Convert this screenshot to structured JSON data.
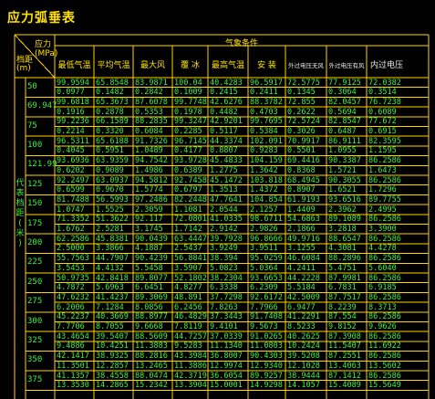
{
  "title": "应力弧垂表",
  "header": {
    "stress": "应力",
    "unit": "(MPa)",
    "span": "档距",
    "span_unit": "(m)",
    "conditions": "气象条件",
    "columns": [
      "最低气温",
      "平均气温",
      "最大风",
      "覆 冰",
      "最高气温",
      "安 装",
      "外过电压无风",
      "外过电压有风",
      "内过电压"
    ],
    "side_label": "代表档距(米)"
  },
  "rows": [
    {
      "span": "50",
      "stress": [
        "99.9594",
        "65.8548",
        "83.9871",
        "100.04",
        "40.4283",
        "96.5917",
        "72.5775",
        "77.9125",
        "72.0382"
      ],
      "sag": [
        "0.0977",
        "0.1482",
        "0.2842",
        "0.1009",
        "0.2415",
        "0.2411",
        "0.1345",
        "0.3064",
        "0.3514"
      ]
    },
    {
      "span": "69.947",
      "stress": [
        "99.6818",
        "65.3673",
        "87.6078",
        "99.7748",
        "42.6276",
        "88.3782",
        "72.855",
        "82.0457",
        "76.7238"
      ],
      "sag": [
        "0.1916",
        "0.2878",
        "0.5353",
        "0.1978",
        "0.4482",
        "0.4703",
        "0.2622",
        "0.5694",
        "0.6089"
      ]
    },
    {
      "span": "75",
      "stress": [
        "99.2236",
        "66.1589",
        "88.2835",
        "99.3247",
        "42.9201",
        "99.7695",
        "72.5724",
        "82.8547",
        "77.672"
      ],
      "sag": [
        "0.2214",
        "0.3320",
        "0.6084",
        "0.2285",
        "0.5117",
        "0.5384",
        "0.3026",
        "0.6487",
        "0.6915"
      ]
    },
    {
      "span": "100",
      "stress": [
        "96.5311",
        "65.6188",
        "91.7326",
        "96.7145",
        "44.3374",
        "102.091",
        "70.9917",
        "86.9111",
        "82.3595"
      ],
      "sag": [
        "0.4045",
        "0.5951",
        "1.0489",
        "0.4177",
        "0.8807",
        "0.9283",
        "0.5501",
        "1.0955",
        "1.1595"
      ]
    },
    {
      "span": "121.99",
      "stress": [
        "93.6936",
        "63.9359",
        "94.7542",
        "93.9728",
        "45.4833",
        "104.159",
        "69.4416",
        "90.3387",
        "86.2586"
      ],
      "sag": [
        "0.6202",
        "0.9089",
        "1.4986",
        "0.6389",
        "1.2775",
        "1.3642",
        "0.8368",
        "1.5721",
        "1.6473"
      ]
    },
    {
      "span": "125",
      "stress": [
        "92.2497",
        "63.0937",
        "94.5812",
        "92.7458",
        "45.1472",
        "103.818",
        "68.4945",
        "90.3055",
        "86.2586"
      ],
      "sag": [
        "0.6599",
        "0.9670",
        "1.5774",
        "0.6797",
        "1.3513",
        "1.4372",
        "0.8907",
        "1.6521",
        "1.7296"
      ]
    },
    {
      "span": "150",
      "stress": [
        "81.7488",
        "56.5993",
        "97.2486",
        "82.2448",
        "47.7641",
        "104.854",
        "61.9193",
        "93.6516",
        "89.7755"
      ],
      "sag": [
        "1.0747",
        "1.5525",
        "2.3059",
        "1.1081",
        "2.0544",
        "2.1257",
        "1.4409",
        "2.3962",
        "2.4995"
      ]
    },
    {
      "span": "175",
      "stress": [
        "71.3352",
        "51.3622",
        "92.117",
        "72.0801",
        "41.0335",
        "98.6711",
        "54.6863",
        "89.1089",
        "86.2586"
      ],
      "sag": [
        "1.6762",
        "2.5281",
        "3.1745",
        "1.7142",
        "2.9142",
        "2.9826",
        "2.1866",
        "3.2818",
        "3.3900"
      ]
    },
    {
      "span": "200",
      "stress": [
        "62.2586",
        "45.8381",
        "90.0439",
        "63.4447",
        "39.7928",
        "96.8666",
        "49.9716",
        "88.6547",
        "86.2586"
      ],
      "sag": [
        "2.5000",
        "3.3866",
        "4.1887",
        "2.5437",
        "3.9249",
        "3.9511",
        "3.1255",
        "4.3081",
        "4.4278"
      ]
    },
    {
      "span": "225",
      "stress": [
        "55.7563",
        "44.7907",
        "90.4239",
        "56.8841",
        "38.394",
        "95.0259",
        "46.6084",
        "88.2896",
        "86.2586"
      ],
      "sag": [
        "3.5453",
        "4.4132",
        "5.5458",
        "3.5907",
        "5.0823",
        "5.0364",
        "4.2411",
        "5.4751",
        "5.6040"
      ]
    },
    {
      "span": "250",
      "stress": [
        "50.9735",
        "42.8418",
        "89.8077",
        "52.1802",
        "38.2304",
        "93.6653",
        "44.2228",
        "87.9981",
        "86.2586"
      ],
      "sag": [
        "4.7872",
        "5.6963",
        "6.6451",
        "4.8277",
        "6.3338",
        "6.2309",
        "5.5184",
        "6.7831",
        "6.9185"
      ]
    },
    {
      "span": "275",
      "stress": [
        "47.6232",
        "41.4237",
        "89.3069",
        "48.891",
        "37.7298",
        "92.6172",
        "42.5009",
        "87.7517",
        "86.2586"
      ],
      "sag": [
        "6.2006",
        "7.1284",
        "8.0856",
        "6.2456",
        "7.8263",
        "7.7966",
        "6.9477",
        "8.2239",
        "8.3713"
      ]
    },
    {
      "span": "300",
      "stress": [
        "45.2237",
        "40.3669",
        "88.8977",
        "46.4829",
        "37.3443",
        "91.7408",
        "41.2291",
        "87.554",
        "86.2586"
      ],
      "sag": [
        "7.7706",
        "8.7055",
        "9.6668",
        "7.8119",
        "9.4101",
        "9.5673",
        "8.5233",
        "9.8152",
        "9.9626"
      ]
    },
    {
      "span": "325",
      "stress": [
        "43.4654",
        "39.5407",
        "88.5609",
        "44.7257",
        "37.0339",
        "91.0265",
        "40.2625",
        "87.3908",
        "86.2586"
      ],
      "sag": [
        "9.4886",
        "10.4251",
        "11.3883",
        "9.5283",
        "11.1340",
        "11.0803",
        "10.2424",
        "11.5407",
        "11.6922"
      ]
    },
    {
      "span": "350",
      "stress": [
        "42.1417",
        "38.9325",
        "88.2816",
        "43.3984",
        "36.8007",
        "90.4303",
        "39.5208",
        "87.2551",
        "86.2586"
      ],
      "sag": [
        "11.3501",
        "12.2857",
        "13.2465",
        "11.3886",
        "12.9974",
        "12.9340",
        "12.1028",
        "13.4063",
        "13.5602"
      ]
    },
    {
      "span": "375",
      "stress": [
        "41.1357",
        "38.4558",
        "88.0474",
        "42.3719",
        "36.6054",
        "89.9257",
        "38.9444",
        "87.1412",
        "86.2586"
      ],
      "sag": [
        "13.3530",
        "14.2865",
        "15.2342",
        "13.3904",
        "15.0001",
        "14.9298",
        "14.1057",
        "15.4089",
        "15.5649"
      ]
    }
  ]
}
